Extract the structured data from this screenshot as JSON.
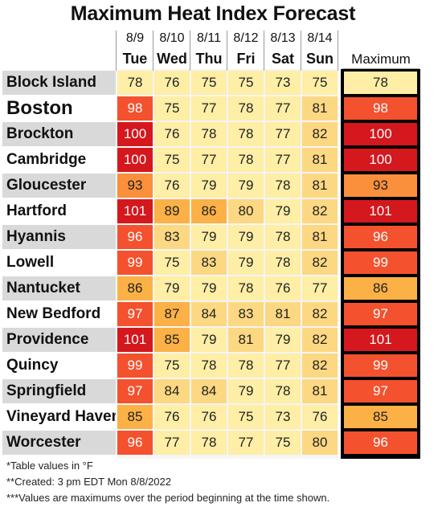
{
  "title": "Maximum Heat Index Forecast",
  "max_header": "Maximum",
  "footnotes": [
    "*Table values in °F",
    "**Created: 3 pm EDT Mon 8/8/2022",
    "***Values are maximums over the period beginning at the time shown."
  ],
  "colors": {
    "le79": "#feeea6",
    "80-84": "#fdd882",
    "85-89": "#fcb146",
    "90-94": "#fa8f3c",
    "95-99": "#f4512e",
    "ge100": "#d4181e"
  },
  "chart_data": {
    "type": "table",
    "title": "Maximum Heat Index Forecast",
    "unit": "°F",
    "columns": [
      {
        "date": "8/9",
        "day": "Tue"
      },
      {
        "date": "8/10",
        "day": "Wed"
      },
      {
        "date": "8/11",
        "day": "Thu"
      },
      {
        "date": "8/12",
        "day": "Fri"
      },
      {
        "date": "8/13",
        "day": "Sat"
      },
      {
        "date": "8/14",
        "day": "Sun"
      }
    ],
    "rows": [
      {
        "city": "Block Island",
        "values": [
          78,
          76,
          75,
          75,
          73,
          75
        ],
        "max": 78
      },
      {
        "city": "Boston",
        "values": [
          98,
          75,
          77,
          78,
          77,
          81
        ],
        "max": 98
      },
      {
        "city": "Brockton",
        "values": [
          100,
          76,
          78,
          78,
          77,
          82
        ],
        "max": 100
      },
      {
        "city": "Cambridge",
        "values": [
          100,
          75,
          77,
          78,
          77,
          81
        ],
        "max": 100
      },
      {
        "city": "Gloucester",
        "values": [
          93,
          76,
          79,
          79,
          78,
          81
        ],
        "max": 93
      },
      {
        "city": "Hartford",
        "values": [
          101,
          89,
          86,
          80,
          79,
          82
        ],
        "max": 101
      },
      {
        "city": "Hyannis",
        "values": [
          96,
          83,
          79,
          79,
          78,
          81
        ],
        "max": 96
      },
      {
        "city": "Lowell",
        "values": [
          99,
          75,
          83,
          79,
          78,
          82
        ],
        "max": 99
      },
      {
        "city": "Nantucket",
        "values": [
          86,
          79,
          79,
          78,
          76,
          77
        ],
        "max": 86
      },
      {
        "city": "New Bedford",
        "values": [
          97,
          87,
          84,
          83,
          81,
          82
        ],
        "max": 97
      },
      {
        "city": "Providence",
        "values": [
          101,
          85,
          79,
          81,
          79,
          82
        ],
        "max": 101
      },
      {
        "city": "Quincy",
        "values": [
          99,
          75,
          78,
          78,
          77,
          82
        ],
        "max": 99
      },
      {
        "city": "Springfield",
        "values": [
          97,
          84,
          84,
          79,
          78,
          81
        ],
        "max": 97
      },
      {
        "city": "Vineyard Haven",
        "values": [
          85,
          76,
          76,
          75,
          73,
          76
        ],
        "max": 85
      },
      {
        "city": "Worcester",
        "values": [
          96,
          77,
          78,
          77,
          75,
          80
        ],
        "max": 96
      }
    ]
  }
}
